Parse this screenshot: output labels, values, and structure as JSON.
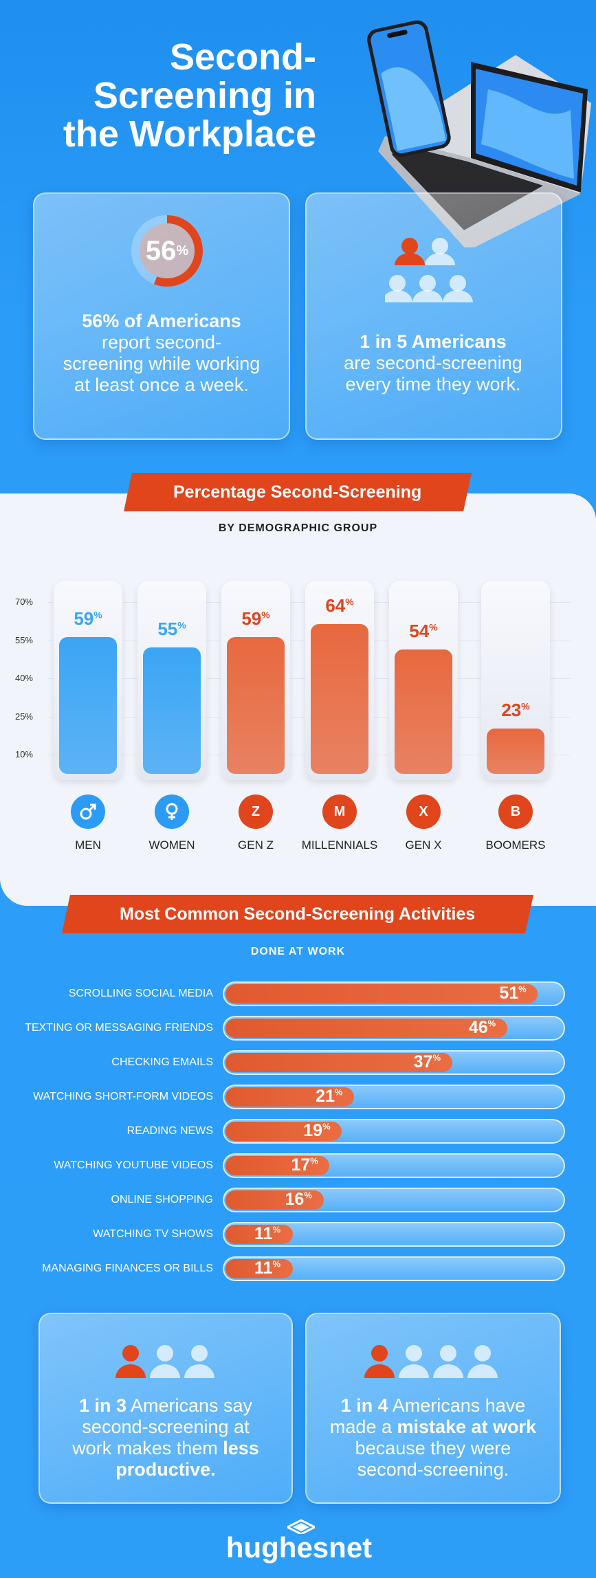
{
  "title": {
    "line1": "Second-",
    "line2": "Screening in",
    "line3": "the Workplace"
  },
  "stat_cards": [
    {
      "percent": "56",
      "percent_sign": "%",
      "bold": "56% of Americans",
      "text": "report second-screening while working at least once a week."
    },
    {
      "bold": "1 in 5 Americans",
      "text": "are second-screening every time they work."
    }
  ],
  "demographic": {
    "banner": "Percentage Second-Screening",
    "subtitle": "BY DEMOGRAPHIC GROUP"
  },
  "activities": {
    "banner": "Most Common Second-Screening Activities",
    "subtitle": "DONE AT WORK"
  },
  "bottom_cards": [
    {
      "pre": "1 in 3",
      "mid": " Americans say second-screening at work makes them ",
      "bold": "less productive.",
      "post": ""
    },
    {
      "pre": "1 in 4",
      "mid": " Americans have made a ",
      "bold": "mistake at work",
      "post": " because they were second-screening."
    }
  ],
  "brand": "hughesnet",
  "colors": {
    "blue": "#2c9bf5",
    "orange": "#e0451c",
    "bar_blue": "#3aa5f5",
    "bar_orange": "#e8683e"
  },
  "chart_data": [
    {
      "type": "bar",
      "title": "Percentage Second-Screening",
      "subtitle": "BY DEMOGRAPHIC GROUP",
      "categories": [
        "MEN",
        "WOMEN",
        "GEN Z",
        "MILLENNIALS",
        "GEN X",
        "BOOMERS"
      ],
      "icons": [
        "male-icon",
        "female-icon",
        "Z",
        "M",
        "X",
        "B"
      ],
      "values": [
        59,
        55,
        59,
        64,
        54,
        23
      ],
      "value_labels": [
        "59",
        "55",
        "59",
        "64",
        "54",
        "23"
      ],
      "bar_colors": [
        "blue",
        "blue",
        "orange",
        "orange",
        "orange",
        "orange"
      ],
      "yticks": [
        "70%",
        "55%",
        "40%",
        "25%",
        "10%"
      ],
      "ytick_values": [
        70,
        55,
        40,
        25,
        10
      ],
      "ylim": [
        0,
        70
      ],
      "unit": "%"
    },
    {
      "type": "bar",
      "orientation": "horizontal",
      "title": "Most Common Second-Screening Activities",
      "subtitle": "DONE AT WORK",
      "categories": [
        "SCROLLING SOCIAL MEDIA",
        "TEXTING OR MESSAGING FRIENDS",
        "CHECKING EMAILS",
        "WATCHING SHORT-FORM VIDEOS",
        "READING NEWS",
        "WATCHING YOUTUBE VIDEOS",
        "ONLINE SHOPPING",
        "WATCHING TV SHOWS",
        "MANAGING FINANCES OR BILLS"
      ],
      "values": [
        51,
        46,
        37,
        21,
        19,
        17,
        16,
        11,
        11
      ],
      "unit": "%"
    }
  ]
}
